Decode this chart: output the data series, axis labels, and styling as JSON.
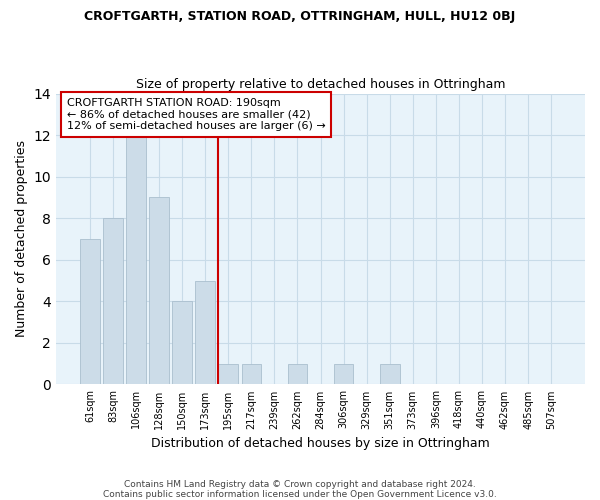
{
  "title": "CROFTGARTH, STATION ROAD, OTTRINGHAM, HULL, HU12 0BJ",
  "subtitle": "Size of property relative to detached houses in Ottringham",
  "xlabel": "Distribution of detached houses by size in Ottringham",
  "ylabel": "Number of detached properties",
  "bar_labels": [
    "61sqm",
    "83sqm",
    "106sqm",
    "128sqm",
    "150sqm",
    "173sqm",
    "195sqm",
    "217sqm",
    "239sqm",
    "262sqm",
    "284sqm",
    "306sqm",
    "329sqm",
    "351sqm",
    "373sqm",
    "396sqm",
    "418sqm",
    "440sqm",
    "462sqm",
    "485sqm",
    "507sqm"
  ],
  "bar_values": [
    7,
    8,
    12,
    9,
    4,
    5,
    1,
    1,
    0,
    1,
    0,
    1,
    0,
    1,
    0,
    0,
    0,
    0,
    0,
    0,
    0
  ],
  "bar_color": "#ccdce8",
  "bar_edgecolor": "#aabfce",
  "ylim": [
    0,
    14
  ],
  "yticks": [
    0,
    2,
    4,
    6,
    8,
    10,
    12,
    14
  ],
  "vline_index": 6,
  "vline_color": "#cc0000",
  "annotation_text": "CROFTGARTH STATION ROAD: 190sqm\n← 86% of detached houses are smaller (42)\n12% of semi-detached houses are larger (6) →",
  "annotation_box_color": "#ffffff",
  "annotation_box_edgecolor": "#cc0000",
  "grid_color": "#c8dbe8",
  "background_color": "#e8f3fa",
  "footer": "Contains HM Land Registry data © Crown copyright and database right 2024.\nContains public sector information licensed under the Open Government Licence v3.0."
}
